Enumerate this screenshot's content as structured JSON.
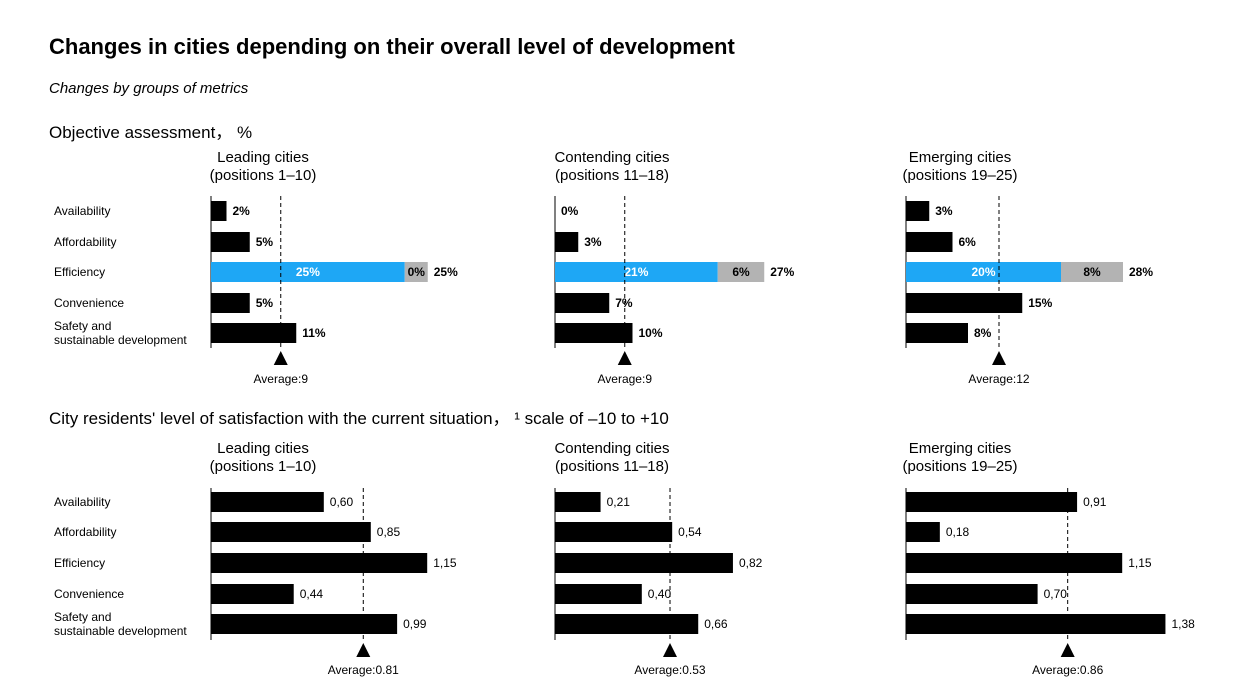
{
  "title": "Changes in cities depending on their overall level of development",
  "subtitle": "Changes by groups of metrics",
  "sections": [
    {
      "heading": "Objective assessment， %"
    },
    {
      "heading": "City residents' level of satisfaction with the current situation， ¹ scale of –10 to +10"
    }
  ],
  "colors": {
    "bar": "#000000",
    "highlight": "#1ea7f5",
    "additional": "#b3b3b3",
    "average_line": "#000000"
  },
  "chart_data": [
    {
      "type": "bar",
      "orientation": "horizontal",
      "stacked": "partial",
      "group_title": "Leading cities",
      "group_subtitle": "(positions 1–10)",
      "categories": [
        "Availability",
        "Affordability",
        "Efficiency",
        "Convenience",
        "Safety and\nsustainable development"
      ],
      "values": [
        2,
        5,
        25,
        5,
        11
      ],
      "value_labels": [
        "2%",
        "5%",
        "25%",
        "5%",
        "11%"
      ],
      "stack": {
        "category_index": 2,
        "extra_value": 0,
        "extra_label": "0%",
        "total_label": "25%"
      },
      "average": 9,
      "average_label": "Average:9",
      "xlim": [
        0,
        50
      ]
    },
    {
      "type": "bar",
      "orientation": "horizontal",
      "stacked": "partial",
      "group_title": "Contending cities",
      "group_subtitle": "(positions 11–18)",
      "categories": [
        "Availability",
        "Affordability",
        "Efficiency",
        "Convenience",
        "Safety and\nsustainable development"
      ],
      "values": [
        0,
        3,
        21,
        7,
        10
      ],
      "value_labels": [
        "0%",
        "3%",
        "21%",
        "7%",
        "10%"
      ],
      "stack": {
        "category_index": 2,
        "extra_value": 6,
        "extra_label": "6%",
        "total_label": "27%"
      },
      "average": 9,
      "average_label": "Average:9",
      "xlim": [
        0,
        50
      ]
    },
    {
      "type": "bar",
      "orientation": "horizontal",
      "stacked": "partial",
      "group_title": "Emerging cities",
      "group_subtitle": "(positions 19–25)",
      "categories": [
        "Availability",
        "Affordability",
        "Efficiency",
        "Convenience",
        "Safety and\nsustainable development"
      ],
      "values": [
        3,
        6,
        20,
        15,
        8
      ],
      "value_labels": [
        "3%",
        "6%",
        "20%",
        "15%",
        "8%"
      ],
      "stack": {
        "category_index": 2,
        "extra_value": 8,
        "extra_label": "8%",
        "total_label": "28%"
      },
      "average": 12,
      "average_label": "Average:12",
      "xlim": [
        0,
        50
      ]
    },
    {
      "type": "bar",
      "orientation": "horizontal",
      "group_title": "Leading cities",
      "group_subtitle": "(positions 1–10)",
      "categories": [
        "Availability",
        "Affordability",
        "Efficiency",
        "Convenience",
        "Safety and\nsustainable development"
      ],
      "values": [
        0.6,
        0.85,
        1.15,
        0.44,
        0.99
      ],
      "value_labels": [
        "0,60",
        "0,85",
        "1,15",
        "0,44",
        "0,99"
      ],
      "average": 0.81,
      "average_label": "Average:0.81",
      "xlim": [
        0,
        1.8
      ]
    },
    {
      "type": "bar",
      "orientation": "horizontal",
      "group_title": "Contending cities",
      "group_subtitle": "(positions 11–18)",
      "categories": [
        "Availability",
        "Affordability",
        "Efficiency",
        "Convenience",
        "Safety and\nsustainable development"
      ],
      "values": [
        0.21,
        0.54,
        0.82,
        0.4,
        0.66
      ],
      "value_labels": [
        "0,21",
        "0,54",
        "0,82",
        "0,40",
        "0,66"
      ],
      "average": 0.53,
      "average_label": "Average:0.53",
      "xlim": [
        0,
        1.3
      ]
    },
    {
      "type": "bar",
      "orientation": "horizontal",
      "group_title": "Emerging cities",
      "group_subtitle": "(positions 19–25)",
      "categories": [
        "Availability",
        "Affordability",
        "Efficiency",
        "Convenience",
        "Safety and\nsustainable development"
      ],
      "values": [
        0.91,
        0.18,
        1.15,
        0.7,
        1.38
      ],
      "value_labels": [
        "0,91",
        "0,18",
        "1,15",
        "0,70",
        "1,38"
      ],
      "average": 0.86,
      "average_label": "Average:0.86",
      "xlim": [
        0,
        1.8
      ]
    }
  ]
}
